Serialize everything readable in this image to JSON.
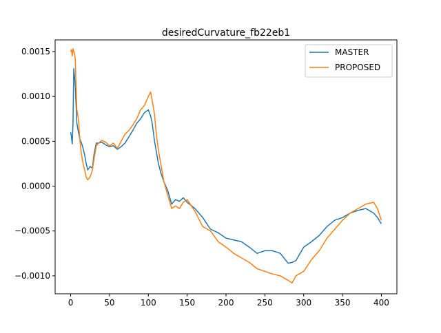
{
  "chart_data": {
    "type": "line",
    "title": "desiredCurvature_fb22eb1",
    "xlabel": "",
    "ylabel": "",
    "xlim": [
      -20,
      420
    ],
    "ylim": [
      -0.0012,
      0.00163
    ],
    "xticks": [
      0,
      50,
      100,
      150,
      200,
      250,
      300,
      350,
      400
    ],
    "yticks": [
      -0.001,
      -0.0005,
      0.0,
      0.0005,
      0.001,
      0.0015
    ],
    "ytick_labels": [
      "−0.0010",
      "−0.0005",
      "0.0000",
      "0.0005",
      "0.0010",
      "0.0015"
    ],
    "grid": false,
    "legend": "top-right",
    "series": [
      {
        "name": "MASTER",
        "color": "#1f77b4",
        "x": [
          0,
          1,
          2,
          3,
          4,
          5,
          6,
          7,
          8,
          10,
          12,
          14,
          16,
          18,
          20,
          22,
          25,
          28,
          30,
          33,
          36,
          40,
          45,
          50,
          55,
          60,
          65,
          70,
          75,
          80,
          85,
          90,
          95,
          100,
          103,
          105,
          108,
          110,
          113,
          116,
          120,
          125,
          130,
          135,
          140,
          145,
          150,
          160,
          170,
          180,
          190,
          200,
          210,
          220,
          230,
          240,
          250,
          260,
          270,
          280,
          285,
          290,
          300,
          310,
          320,
          330,
          340,
          350,
          360,
          370,
          380,
          390,
          395,
          400
        ],
        "y": [
          0.0006,
          0.00055,
          0.00047,
          0.0007,
          0.00131,
          0.00122,
          0.0011,
          0.0009,
          0.0007,
          0.0006,
          0.00052,
          0.00048,
          0.00042,
          0.00035,
          0.00025,
          0.00018,
          0.00022,
          0.0002,
          0.00035,
          0.00048,
          0.00048,
          0.00049,
          0.00046,
          0.00044,
          0.00045,
          0.00041,
          0.00044,
          0.00048,
          0.00055,
          0.00062,
          0.0007,
          0.00075,
          0.00082,
          0.00085,
          0.00078,
          0.0007,
          0.0005,
          0.0004,
          0.00025,
          0.00015,
          5e-05,
          -5e-05,
          -0.0002,
          -0.00015,
          -0.00017,
          -0.00013,
          -0.00018,
          -0.00025,
          -0.00035,
          -0.00048,
          -0.00052,
          -0.00058,
          -0.0006,
          -0.00062,
          -0.00068,
          -0.00075,
          -0.00072,
          -0.00072,
          -0.00075,
          -0.00086,
          -0.00085,
          -0.00083,
          -0.00068,
          -0.00062,
          -0.00055,
          -0.00045,
          -0.00038,
          -0.00035,
          -0.0003,
          -0.00027,
          -0.00025,
          -0.0003,
          -0.00035,
          -0.00042
        ]
      },
      {
        "name": "PROPOSED",
        "color": "#ff7f0e",
        "x": [
          0,
          1,
          2,
          3,
          4,
          5,
          6,
          7,
          8,
          10,
          12,
          14,
          16,
          18,
          20,
          22,
          25,
          28,
          30,
          33,
          36,
          40,
          45,
          50,
          55,
          60,
          65,
          70,
          75,
          80,
          85,
          90,
          95,
          100,
          103,
          105,
          108,
          110,
          113,
          116,
          120,
          125,
          130,
          135,
          140,
          145,
          150,
          160,
          170,
          180,
          190,
          200,
          210,
          220,
          230,
          240,
          250,
          260,
          270,
          280,
          285,
          290,
          300,
          310,
          320,
          330,
          340,
          350,
          360,
          370,
          380,
          390,
          395,
          400
        ],
        "y": [
          0.0015,
          0.00152,
          0.00145,
          0.00153,
          0.0015,
          0.00148,
          0.0014,
          0.0011,
          0.00085,
          0.00075,
          0.0005,
          0.00035,
          0.00025,
          0.00018,
          0.0001,
          7e-05,
          0.0001,
          0.00018,
          0.0003,
          0.00045,
          0.00048,
          0.00051,
          0.00049,
          0.00045,
          0.00048,
          0.00042,
          0.0005,
          0.00058,
          0.00062,
          0.00068,
          0.00075,
          0.00085,
          0.0009,
          0.001,
          0.00105,
          0.00095,
          0.0008,
          0.0006,
          0.0004,
          0.00025,
          5e-05,
          -0.0001,
          -0.00025,
          -0.00022,
          -0.00025,
          -0.00018,
          -0.00015,
          -0.00028,
          -0.00045,
          -0.0005,
          -0.00062,
          -0.00068,
          -0.00075,
          -0.0008,
          -0.00085,
          -0.00092,
          -0.00095,
          -0.00098,
          -0.001,
          -0.00105,
          -0.00108,
          -0.001,
          -0.00095,
          -0.00082,
          -0.00072,
          -0.00058,
          -0.00048,
          -0.00038,
          -0.0003,
          -0.00025,
          -0.0002,
          -0.00018,
          -0.00025,
          -0.00038
        ]
      }
    ]
  }
}
